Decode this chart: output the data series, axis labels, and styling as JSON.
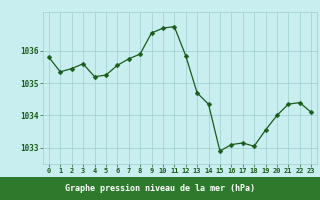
{
  "hours": [
    0,
    1,
    2,
    3,
    4,
    5,
    6,
    7,
    8,
    9,
    10,
    11,
    12,
    13,
    14,
    15,
    16,
    17,
    18,
    19,
    20,
    21,
    22,
    23
  ],
  "pressure": [
    1035.8,
    1035.35,
    1035.45,
    1035.6,
    1035.2,
    1035.25,
    1035.55,
    1035.75,
    1035.9,
    1036.55,
    1036.7,
    1036.75,
    1035.85,
    1034.7,
    1034.35,
    1032.9,
    1033.1,
    1033.15,
    1033.05,
    1033.55,
    1034.0,
    1034.35,
    1034.4,
    1034.1
  ],
  "line_color": "#1a5c1a",
  "marker": "D",
  "marker_size": 2.5,
  "bg_color": "#c8eef0",
  "grid_color": "#9dcfcf",
  "xlabel": "Graphe pression niveau de la mer (hPa)",
  "xlabel_color": "#ffffff",
  "xlabel_bg": "#2d7a2d",
  "tick_color": "#1a5c1a",
  "yticks": [
    1033,
    1034,
    1035,
    1036
  ],
  "ylim": [
    1032.5,
    1037.2
  ],
  "xlim": [
    -0.5,
    23.5
  ],
  "xtick_labels": [
    "0",
    "1",
    "2",
    "3",
    "4",
    "5",
    "6",
    "7",
    "8",
    "9",
    "10",
    "11",
    "12",
    "13",
    "14",
    "15",
    "16",
    "17",
    "18",
    "19",
    "20",
    "21",
    "22",
    "23"
  ]
}
